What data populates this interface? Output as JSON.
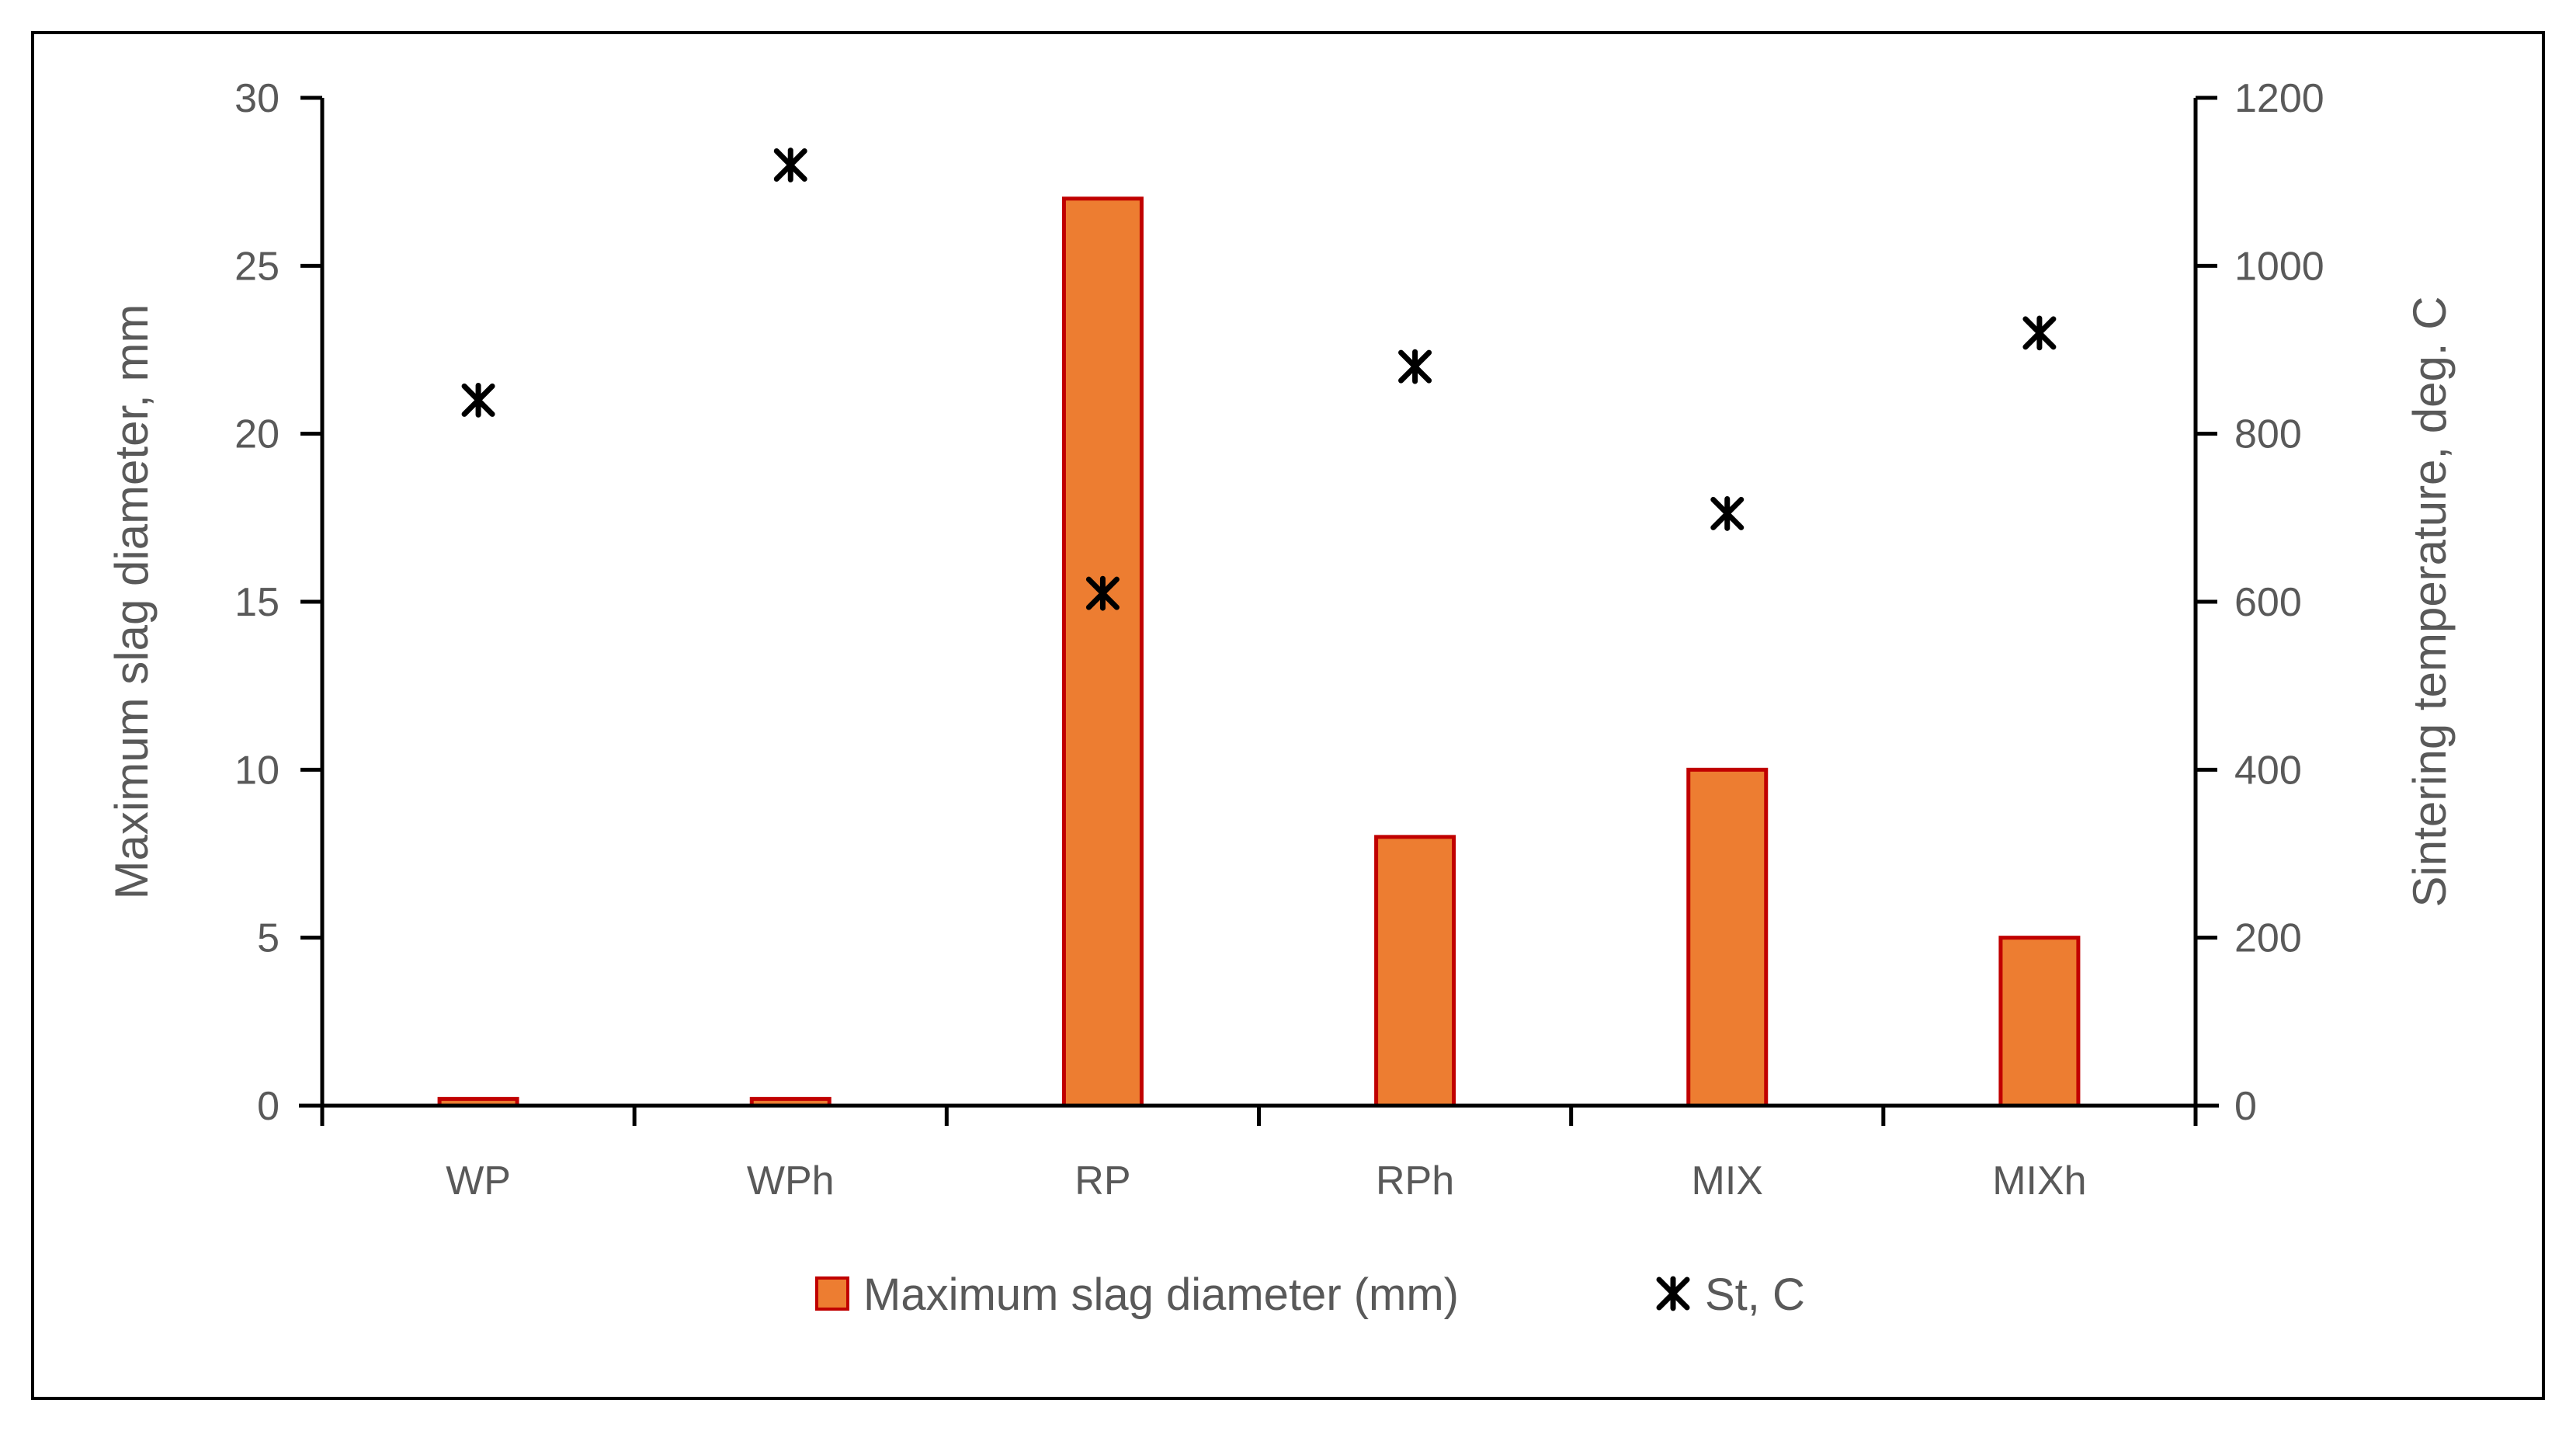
{
  "chart_data": {
    "type": "bar",
    "categories": [
      "WP",
      "WPh",
      "RP",
      "RPh",
      "MIX",
      "MIXh"
    ],
    "series": [
      {
        "name": "Maximum slag diameter (mm)",
        "type": "bar",
        "axis": "left",
        "values": [
          0.2,
          0.2,
          27,
          8,
          10,
          5
        ]
      },
      {
        "name": "St, C",
        "type": "scatter",
        "axis": "right",
        "marker": "asterisk",
        "values": [
          840,
          1120,
          610,
          880,
          705,
          920
        ]
      }
    ],
    "ylabel": "Maximum slag diameter, mm",
    "ylabel_right": "Sintering temperature, deg. C",
    "ylim": [
      0,
      30
    ],
    "yticks": [
      0,
      5,
      10,
      15,
      20,
      25,
      30
    ],
    "ylim_right": [
      0,
      1200
    ],
    "yticks_right": [
      0,
      200,
      400,
      600,
      800,
      1000,
      1200
    ],
    "grid": false,
    "legend_position": "bottom",
    "colors": {
      "bar_fill": "#ED7D31",
      "bar_edge": "#C00000",
      "marker": "#000000",
      "axis": "#000000",
      "text": "#595959"
    }
  }
}
